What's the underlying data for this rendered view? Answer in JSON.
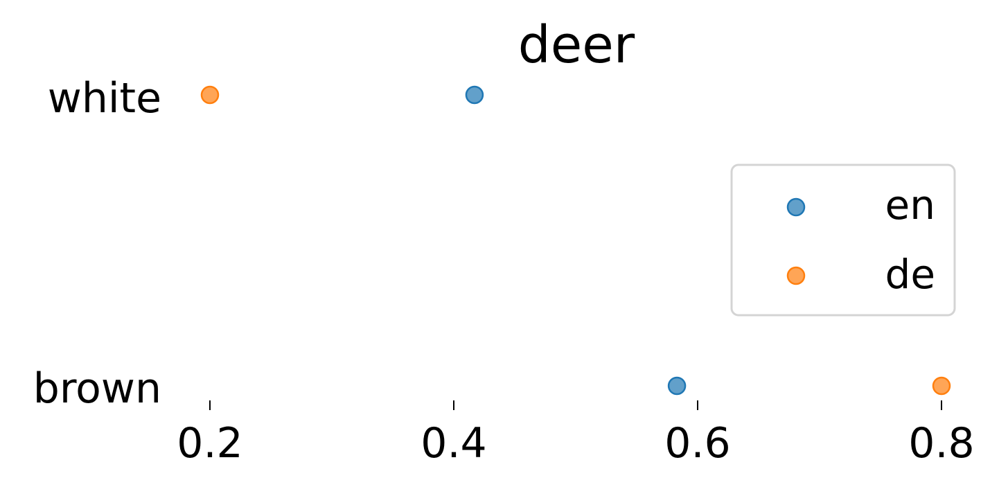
{
  "chart_data": {
    "type": "scatter",
    "title": "deer",
    "categories": [
      "white",
      "brown"
    ],
    "series": [
      {
        "name": "en",
        "color": "#1f77b4",
        "values": [
          0.417,
          0.583
        ]
      },
      {
        "name": "de",
        "color": "#ff7f0e",
        "values": [
          0.2,
          0.8
        ]
      }
    ],
    "xticks": [
      "0.2",
      "0.4",
      "0.6",
      "0.8"
    ],
    "xlim": [
      0.2,
      0.8
    ],
    "grid": false,
    "legend_position": "right"
  }
}
